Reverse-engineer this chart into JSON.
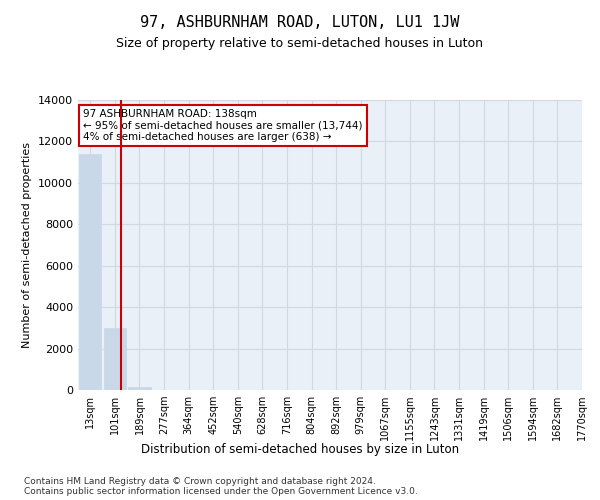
{
  "title": "97, ASHBURNHAM ROAD, LUTON, LU1 1JW",
  "subtitle": "Size of property relative to semi-detached houses in Luton",
  "xlabel": "Distribution of semi-detached houses by size in Luton",
  "ylabel": "Number of semi-detached properties",
  "bin_labels": [
    "13sqm",
    "101sqm",
    "189sqm",
    "277sqm",
    "364sqm",
    "452sqm",
    "540sqm",
    "628sqm",
    "716sqm",
    "804sqm",
    "892sqm",
    "979sqm",
    "1067sqm",
    "1155sqm",
    "1243sqm",
    "1331sqm",
    "1419sqm",
    "1506sqm",
    "1594sqm",
    "1682sqm",
    "1770sqm"
  ],
  "bar_values": [
    11400,
    3000,
    150,
    0,
    0,
    0,
    0,
    0,
    0,
    0,
    0,
    0,
    0,
    0,
    0,
    0,
    0,
    0,
    0,
    0
  ],
  "bar_color": "#c8d8e8",
  "bar_edge_color": "#c8d8e8",
  "grid_color": "#d0d8e0",
  "background_color": "#eaf0f8",
  "ylim": [
    0,
    14000
  ],
  "yticks": [
    0,
    2000,
    4000,
    6000,
    8000,
    10000,
    12000,
    14000
  ],
  "property_size": 138,
  "property_label": "97 ASHBURNHAM ROAD: 138sqm",
  "annotation_line1": "97 ASHBURNHAM ROAD: 138sqm",
  "annotation_line2": "← 95% of semi-detached houses are smaller (13,744)",
  "annotation_line3": "4% of semi-detached houses are larger (638) →",
  "vline_color": "#cc0000",
  "vline_x": 1.25,
  "footer1": "Contains HM Land Registry data © Crown copyright and database right 2024.",
  "footer2": "Contains public sector information licensed under the Open Government Licence v3.0."
}
